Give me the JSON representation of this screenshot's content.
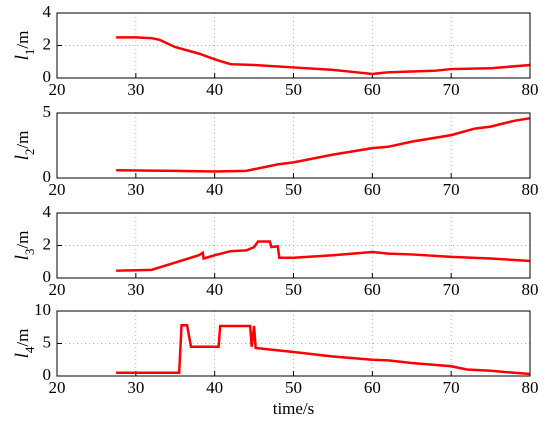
{
  "chart_data": [
    {
      "type": "line",
      "ylabel": {
        "base": "l",
        "sub": "1",
        "rest": "/m"
      },
      "x": [
        27.5,
        30,
        32,
        33,
        35,
        38,
        40,
        42,
        45,
        50,
        55,
        58,
        60,
        62,
        65,
        68,
        70,
        75,
        80
      ],
      "values": [
        2.5,
        2.5,
        2.45,
        2.35,
        1.9,
        1.5,
        1.15,
        0.85,
        0.8,
        0.65,
        0.5,
        0.35,
        0.25,
        0.35,
        0.4,
        0.45,
        0.55,
        0.6,
        0.8
      ],
      "color": "#ff0000",
      "xlim": [
        20,
        80
      ],
      "xticks": [
        20,
        30,
        40,
        50,
        60,
        70,
        80
      ],
      "ylim": [
        0,
        4
      ],
      "yticks": [
        0,
        2,
        4
      ],
      "grid": true
    },
    {
      "type": "line",
      "ylabel": {
        "base": "l",
        "sub": "2",
        "rest": "/m"
      },
      "x": [
        27.5,
        35,
        40,
        44,
        46,
        48,
        50,
        55,
        60,
        62,
        65,
        70,
        73,
        75,
        78,
        80
      ],
      "values": [
        0.6,
        0.55,
        0.5,
        0.55,
        0.8,
        1.05,
        1.2,
        1.8,
        2.3,
        2.4,
        2.8,
        3.3,
        3.8,
        3.95,
        4.4,
        4.6
      ],
      "color": "#ff0000",
      "xlim": [
        20,
        80
      ],
      "xticks": [
        20,
        30,
        40,
        50,
        60,
        70,
        80
      ],
      "ylim": [
        0,
        5
      ],
      "yticks": [
        0,
        5
      ],
      "grid": true
    },
    {
      "type": "line",
      "ylabel": {
        "base": "l",
        "sub": "3",
        "rest": "/m"
      },
      "x": [
        27.5,
        32,
        35,
        38,
        38.5,
        38.6,
        40,
        42,
        44,
        45,
        45.5,
        47,
        47.2,
        48,
        48.2,
        50,
        55,
        60,
        62,
        65,
        70,
        75,
        80
      ],
      "values": [
        0.45,
        0.5,
        0.95,
        1.4,
        1.55,
        1.2,
        1.4,
        1.65,
        1.7,
        1.9,
        2.25,
        2.25,
        1.9,
        1.95,
        1.25,
        1.25,
        1.4,
        1.6,
        1.5,
        1.45,
        1.3,
        1.2,
        1.05
      ],
      "color": "#ff0000",
      "xlim": [
        20,
        80
      ],
      "xticks": [
        20,
        30,
        40,
        50,
        60,
        70,
        80
      ],
      "ylim": [
        0,
        4
      ],
      "yticks": [
        0,
        2,
        4
      ],
      "grid": true
    },
    {
      "type": "line",
      "ylabel": {
        "base": "l",
        "sub": "4",
        "rest": "/m"
      },
      "xlabel": "time/s",
      "x": [
        27.5,
        35.5,
        35.8,
        36.5,
        37,
        40.5,
        40.7,
        44.5,
        44.7,
        45,
        45.2,
        50,
        55,
        60,
        62,
        65,
        70,
        72,
        75,
        80
      ],
      "values": [
        0.5,
        0.5,
        7.8,
        7.8,
        4.5,
        4.5,
        7.7,
        7.7,
        4.5,
        7.7,
        4.3,
        3.7,
        3,
        2.5,
        2.4,
        2,
        1.5,
        1,
        0.8,
        0.3
      ],
      "color": "#ff0000",
      "xlim": [
        20,
        80
      ],
      "xticks": [
        20,
        30,
        40,
        50,
        60,
        70,
        80
      ],
      "ylim": [
        0,
        10
      ],
      "yticks": [
        0,
        5,
        10
      ],
      "grid": true
    }
  ]
}
